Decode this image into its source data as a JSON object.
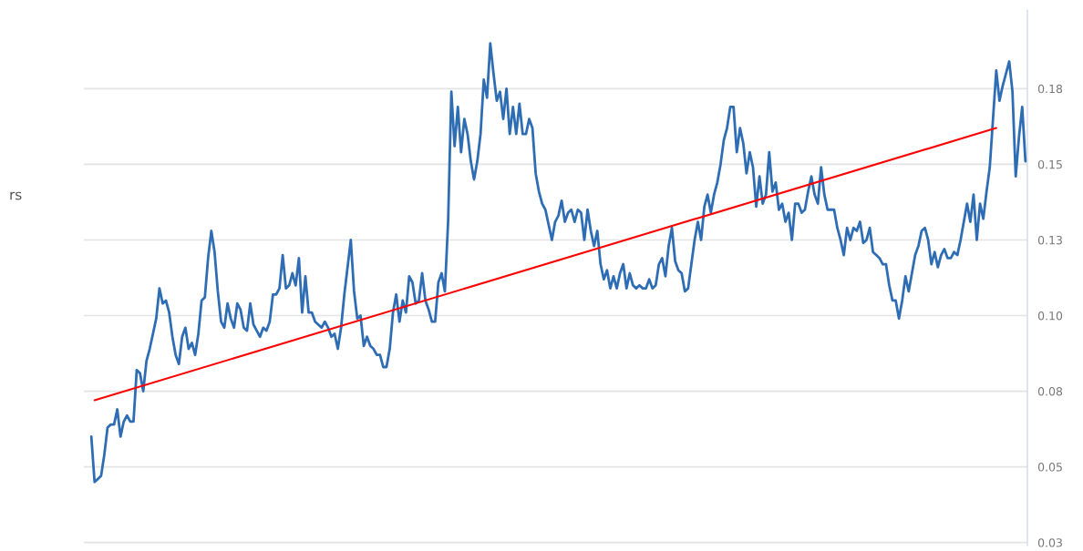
{
  "chart_data": {
    "type": "line",
    "categories": [
      null,
      null,
      null,
      null,
      null,
      null,
      null,
      null,
      null,
      null,
      null,
      null,
      null,
      null,
      null,
      null,
      null,
      null,
      null,
      null,
      null,
      null,
      null,
      null,
      null,
      null,
      null,
      null,
      null,
      null,
      null,
      null,
      null,
      null,
      null,
      null,
      null,
      null,
      null,
      null,
      null,
      null,
      null,
      null,
      null,
      null,
      null,
      null,
      null,
      null,
      null,
      null,
      null,
      null,
      null,
      null,
      null,
      null,
      null,
      null,
      null,
      null,
      null,
      null,
      null,
      null,
      null,
      null,
      null,
      null,
      null,
      null,
      null,
      null,
      null,
      null,
      null,
      null,
      null,
      null,
      null,
      null,
      null,
      null,
      null,
      null,
      null,
      null,
      null,
      null,
      null,
      null,
      null,
      null,
      null,
      null,
      null,
      null,
      null,
      null,
      null,
      null,
      null,
      null,
      null,
      null,
      null,
      null,
      null,
      null,
      null,
      null,
      null,
      null,
      null,
      null,
      null,
      null,
      null,
      null,
      null,
      null,
      null,
      null,
      null,
      null,
      null,
      null,
      null,
      null,
      null,
      null,
      null,
      null,
      null,
      null,
      null,
      null,
      null,
      null,
      null,
      null,
      null,
      null,
      null,
      null,
      null,
      null,
      null,
      null,
      null,
      null,
      null,
      null,
      null,
      null,
      null,
      null,
      null,
      null,
      null,
      null,
      null,
      null,
      null,
      null,
      null,
      null,
      null,
      null,
      null,
      null,
      null,
      null,
      null,
      null,
      null,
      null,
      null,
      null,
      null,
      null,
      null,
      null,
      null,
      null,
      null,
      null,
      null,
      null,
      null,
      null,
      null,
      null,
      null,
      null,
      null,
      null,
      null,
      null,
      null,
      null,
      null,
      null,
      null,
      null,
      null,
      null,
      null,
      null,
      null,
      null,
      null,
      null,
      null,
      null,
      null,
      null,
      null,
      null,
      null,
      null,
      null,
      null,
      null,
      null,
      null,
      null,
      null,
      null,
      null,
      null,
      null,
      null,
      null,
      null,
      null,
      null,
      null,
      null,
      null,
      null,
      null,
      null,
      null,
      null,
      null,
      null,
      null,
      null,
      null,
      null,
      null,
      null,
      null,
      null,
      null,
      null,
      null,
      null,
      null,
      null,
      null,
      null,
      null,
      null,
      null,
      null,
      null,
      null,
      null,
      null,
      null,
      null,
      null,
      null,
      null,
      null,
      null,
      null,
      null,
      null,
      null,
      null,
      null,
      null,
      null,
      null,
      null
    ],
    "ylim": [
      0.024,
      0.201
    ],
    "yticks": [
      {
        "value": 0.025,
        "label": "0.03"
      },
      {
        "value": 0.05,
        "label": "0.05"
      },
      {
        "value": 0.075,
        "label": "0.08"
      },
      {
        "value": 0.1,
        "label": "0.10"
      },
      {
        "value": 0.125,
        "label": "0.13"
      },
      {
        "value": 0.15,
        "label": "0.15"
      },
      {
        "value": 0.175,
        "label": "0.18"
      }
    ],
    "grid": "y",
    "tick_labels": "y",
    "annotations": [
      "rs"
    ],
    "series": [
      {
        "color": "#2e6db4",
        "values": [
          0.06,
          0.045,
          0.046,
          0.047,
          0.054,
          0.063,
          0.064,
          0.064,
          0.069,
          0.06,
          0.065,
          0.067,
          0.065,
          0.065,
          0.082,
          0.081,
          0.075,
          0.085,
          0.089,
          0.094,
          0.099,
          0.109,
          0.104,
          0.105,
          0.101,
          0.093,
          0.087,
          0.084,
          0.093,
          0.096,
          0.089,
          0.091,
          0.087,
          0.094,
          0.105,
          0.106,
          0.119,
          0.128,
          0.121,
          0.108,
          0.098,
          0.096,
          0.104,
          0.099,
          0.096,
          0.104,
          0.102,
          0.096,
          0.095,
          0.104,
          0.097,
          0.095,
          0.093,
          0.096,
          0.095,
          0.098,
          0.107,
          0.107,
          0.109,
          0.12,
          0.109,
          0.11,
          0.114,
          0.11,
          0.119,
          0.101,
          0.113,
          0.101,
          0.101,
          0.098,
          0.097,
          0.096,
          0.098,
          0.096,
          0.093,
          0.094,
          0.089,
          0.096,
          0.107,
          0.116,
          0.125,
          0.108,
          0.099,
          0.1,
          0.09,
          0.093,
          0.09,
          0.089,
          0.087,
          0.087,
          0.083,
          0.083,
          0.089,
          0.101,
          0.107,
          0.098,
          0.105,
          0.101,
          0.113,
          0.111,
          0.104,
          0.105,
          0.114,
          0.105,
          0.102,
          0.098,
          0.098,
          0.111,
          0.114,
          0.108,
          0.131,
          0.174,
          0.156,
          0.169,
          0.154,
          0.165,
          0.16,
          0.151,
          0.145,
          0.151,
          0.16,
          0.178,
          0.172,
          0.19,
          0.18,
          0.171,
          0.174,
          0.165,
          0.175,
          0.16,
          0.169,
          0.16,
          0.17,
          0.16,
          0.16,
          0.165,
          0.162,
          0.147,
          0.141,
          0.137,
          0.135,
          0.13,
          0.125,
          0.131,
          0.133,
          0.138,
          0.131,
          0.134,
          0.135,
          0.131,
          0.135,
          0.134,
          0.125,
          0.135,
          0.128,
          0.123,
          0.128,
          0.117,
          0.112,
          0.115,
          0.109,
          0.113,
          0.109,
          0.114,
          0.117,
          0.109,
          0.114,
          0.11,
          0.109,
          0.11,
          0.109,
          0.109,
          0.112,
          0.109,
          0.11,
          0.117,
          0.119,
          0.113,
          0.123,
          0.129,
          0.118,
          0.115,
          0.114,
          0.108,
          0.109,
          0.117,
          0.125,
          0.131,
          0.125,
          0.136,
          0.14,
          0.134,
          0.14,
          0.144,
          0.15,
          0.158,
          0.162,
          0.169,
          0.169,
          0.154,
          0.162,
          0.157,
          0.147,
          0.154,
          0.149,
          0.136,
          0.146,
          0.137,
          0.14,
          0.154,
          0.141,
          0.144,
          0.135,
          0.137,
          0.131,
          0.134,
          0.125,
          0.137,
          0.137,
          0.134,
          0.135,
          0.141,
          0.146,
          0.14,
          0.137,
          0.149,
          0.14,
          0.135,
          0.135,
          0.135,
          0.129,
          0.125,
          0.12,
          0.129,
          0.125,
          0.129,
          0.128,
          0.131,
          0.124,
          0.125,
          0.129,
          0.121,
          0.12,
          0.119,
          0.117,
          0.117,
          0.11,
          0.105,
          0.105,
          0.099,
          0.105,
          0.113,
          0.108,
          0.114,
          0.12,
          0.123,
          0.128,
          0.129,
          0.125,
          0.117,
          0.121,
          0.116,
          0.12,
          0.122,
          0.119,
          0.119,
          0.121,
          0.12,
          0.125,
          0.131,
          0.137,
          0.131,
          0.14,
          0.125,
          0.137,
          0.132,
          0.141,
          0.149,
          0.165,
          0.181,
          0.171,
          0.176,
          0.18,
          0.184,
          0.174,
          0.146,
          0.159,
          0.169,
          0.151
        ]
      },
      {
        "type": "line",
        "color": "#ff0000",
        "values": [
          null,
          0.072,
          null,
          null,
          null,
          null,
          null,
          null,
          null,
          null,
          null,
          null,
          null,
          null,
          null,
          null,
          null,
          null,
          null,
          null,
          null,
          null,
          null,
          null,
          null,
          null,
          null,
          null,
          null,
          null,
          null,
          null,
          null,
          null,
          null,
          null,
          null,
          null,
          null,
          null,
          null,
          null,
          null,
          null,
          null,
          null,
          null,
          null,
          null,
          null,
          null,
          null,
          null,
          null,
          null,
          null,
          null,
          null,
          null,
          null,
          null,
          null,
          null,
          null,
          null,
          null,
          null,
          null,
          null,
          null,
          null,
          null,
          null,
          null,
          null,
          null,
          null,
          null,
          null,
          null,
          null,
          null,
          null,
          null,
          null,
          null,
          null,
          null,
          null,
          null,
          null,
          null,
          null,
          null,
          null,
          null,
          null,
          null,
          null,
          null,
          null,
          null,
          null,
          null,
          null,
          null,
          null,
          null,
          null,
          null,
          null,
          null,
          null,
          null,
          null,
          null,
          null,
          null,
          null,
          null,
          null,
          null,
          null,
          null,
          null,
          null,
          null,
          null,
          null,
          null,
          null,
          null,
          null,
          null,
          null,
          null,
          null,
          null,
          null,
          null,
          null,
          null,
          null,
          null,
          null,
          null,
          null,
          null,
          null,
          null,
          null,
          null,
          null,
          null,
          null,
          null,
          null,
          null,
          null,
          null,
          null,
          null,
          null,
          null,
          null,
          null,
          null,
          null,
          null,
          null,
          null,
          null,
          null,
          null,
          null,
          null,
          null,
          null,
          null,
          null,
          null,
          null,
          null,
          null,
          null,
          null,
          null,
          null,
          null,
          null,
          null,
          null,
          null,
          null,
          null,
          null,
          null,
          null,
          null,
          null,
          null,
          null,
          null,
          null,
          null,
          null,
          null,
          null,
          null,
          null,
          null,
          null,
          null,
          null,
          null,
          null,
          null,
          null,
          null,
          null,
          null,
          null,
          null,
          null,
          null,
          null,
          null,
          null,
          null,
          null,
          null,
          null,
          null,
          null,
          null,
          null,
          null,
          null,
          null,
          null,
          null,
          null,
          null,
          null,
          null,
          null,
          null,
          null,
          null,
          null,
          null,
          null,
          null,
          null,
          null,
          null,
          null,
          null,
          null,
          null,
          null,
          null,
          null,
          null,
          null,
          null,
          null,
          null,
          null,
          null,
          null,
          null,
          null,
          null,
          null,
          null,
          null,
          null,
          null,
          0.162,
          null,
          null,
          null,
          null,
          null,
          null,
          null,
          null,
          null
        ]
      }
    ]
  }
}
